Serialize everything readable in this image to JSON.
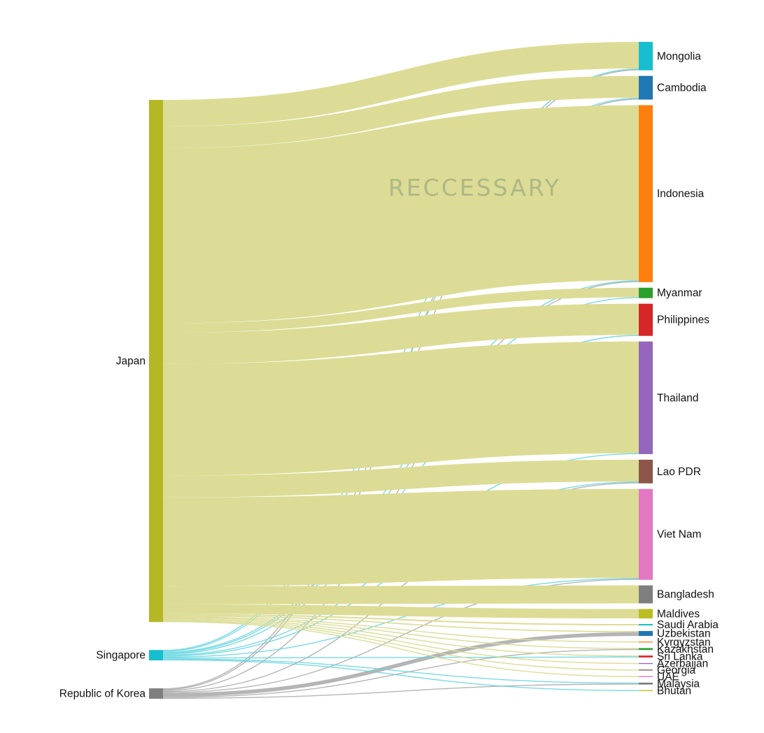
{
  "watermark": "RECCESSARY",
  "chart_data": {
    "type": "sankey",
    "sources": [
      {
        "name": "Japan",
        "color": "#b5b824"
      },
      {
        "name": "Singapore",
        "color": "#17becf"
      },
      {
        "name": "Republic of Korea",
        "color": "#7f7f7f"
      }
    ],
    "targets": [
      {
        "name": "Mongolia",
        "color": "#17becf"
      },
      {
        "name": "Cambodia",
        "color": "#1f77b4"
      },
      {
        "name": "Indonesia",
        "color": "#ff7f0e"
      },
      {
        "name": "Myanmar",
        "color": "#2ca02c"
      },
      {
        "name": "Philippines",
        "color": "#d62728"
      },
      {
        "name": "Thailand",
        "color": "#9467bd"
      },
      {
        "name": "Lao PDR",
        "color": "#8c564b"
      },
      {
        "name": "Viet Nam",
        "color": "#e377c2"
      },
      {
        "name": "Bangladesh",
        "color": "#7f7f7f"
      },
      {
        "name": "Maldives",
        "color": "#bcbd22"
      },
      {
        "name": "Saudi Arabia",
        "color": "#17becf"
      },
      {
        "name": "Uzbekistan",
        "color": "#1f77b4"
      },
      {
        "name": "Kyrgyzstan",
        "color": "#ff7f0e"
      },
      {
        "name": "Kazakhstan",
        "color": "#2ca02c"
      },
      {
        "name": "Sri Lanka",
        "color": "#d62728"
      },
      {
        "name": "Azerbaijan",
        "color": "#9467bd"
      },
      {
        "name": "Georgia",
        "color": "#8c564b"
      },
      {
        "name": "UAE",
        "color": "#e377c2"
      },
      {
        "name": "Malaysia",
        "color": "#7f7f7f"
      },
      {
        "name": "Bhutan",
        "color": "#bcbd22"
      }
    ],
    "links": [
      {
        "source": "Japan",
        "target": "Mongolia",
        "value": 28
      },
      {
        "source": "Japan",
        "target": "Cambodia",
        "value": 23
      },
      {
        "source": "Japan",
        "target": "Indonesia",
        "value": 185
      },
      {
        "source": "Japan",
        "target": "Myanmar",
        "value": 10
      },
      {
        "source": "Japan",
        "target": "Philippines",
        "value": 33
      },
      {
        "source": "Japan",
        "target": "Thailand",
        "value": 118
      },
      {
        "source": "Japan",
        "target": "Lao PDR",
        "value": 23
      },
      {
        "source": "Japan",
        "target": "Viet Nam",
        "value": 94
      },
      {
        "source": "Japan",
        "target": "Bangladesh",
        "value": 19
      },
      {
        "source": "Japan",
        "target": "Maldives",
        "value": 10
      },
      {
        "source": "Japan",
        "target": "Saudi Arabia",
        "value": 1.5
      },
      {
        "source": "Japan",
        "target": "Uzbekistan",
        "value": 1.2
      },
      {
        "source": "Japan",
        "target": "Kyrgyzstan",
        "value": 1
      },
      {
        "source": "Japan",
        "target": "Kazakhstan",
        "value": 1
      },
      {
        "source": "Japan",
        "target": "Sri Lanka",
        "value": 1
      },
      {
        "source": "Japan",
        "target": "Azerbaijan",
        "value": 1
      },
      {
        "source": "Japan",
        "target": "Georgia",
        "value": 1
      },
      {
        "source": "Japan",
        "target": "UAE",
        "value": 1
      },
      {
        "source": "Singapore",
        "target": "Mongolia",
        "value": 1
      },
      {
        "source": "Singapore",
        "target": "Cambodia",
        "value": 1
      },
      {
        "source": "Singapore",
        "target": "Indonesia",
        "value": 1
      },
      {
        "source": "Singapore",
        "target": "Myanmar",
        "value": 1
      },
      {
        "source": "Singapore",
        "target": "Philippines",
        "value": 1
      },
      {
        "source": "Singapore",
        "target": "Thailand",
        "value": 1
      },
      {
        "source": "Singapore",
        "target": "Lao PDR",
        "value": 1
      },
      {
        "source": "Singapore",
        "target": "Viet Nam",
        "value": 1
      },
      {
        "source": "Singapore",
        "target": "Sri Lanka",
        "value": 1
      },
      {
        "source": "Singapore",
        "target": "Malaysia",
        "value": 1
      },
      {
        "source": "Singapore",
        "target": "Bhutan",
        "value": 1
      },
      {
        "source": "Republic of Korea",
        "target": "Mongolia",
        "value": 1
      },
      {
        "source": "Republic of Korea",
        "target": "Cambodia",
        "value": 1
      },
      {
        "source": "Republic of Korea",
        "target": "Indonesia",
        "value": 1
      },
      {
        "source": "Republic of Korea",
        "target": "Lao PDR",
        "value": 1
      },
      {
        "source": "Republic of Korea",
        "target": "Viet Nam",
        "value": 1
      },
      {
        "source": "Republic of Korea",
        "target": "Uzbekistan",
        "value": 4
      },
      {
        "source": "Republic of Korea",
        "target": "Kazakhstan",
        "value": 1
      },
      {
        "source": "Republic of Korea",
        "target": "Malaysia",
        "value": 1
      }
    ]
  }
}
